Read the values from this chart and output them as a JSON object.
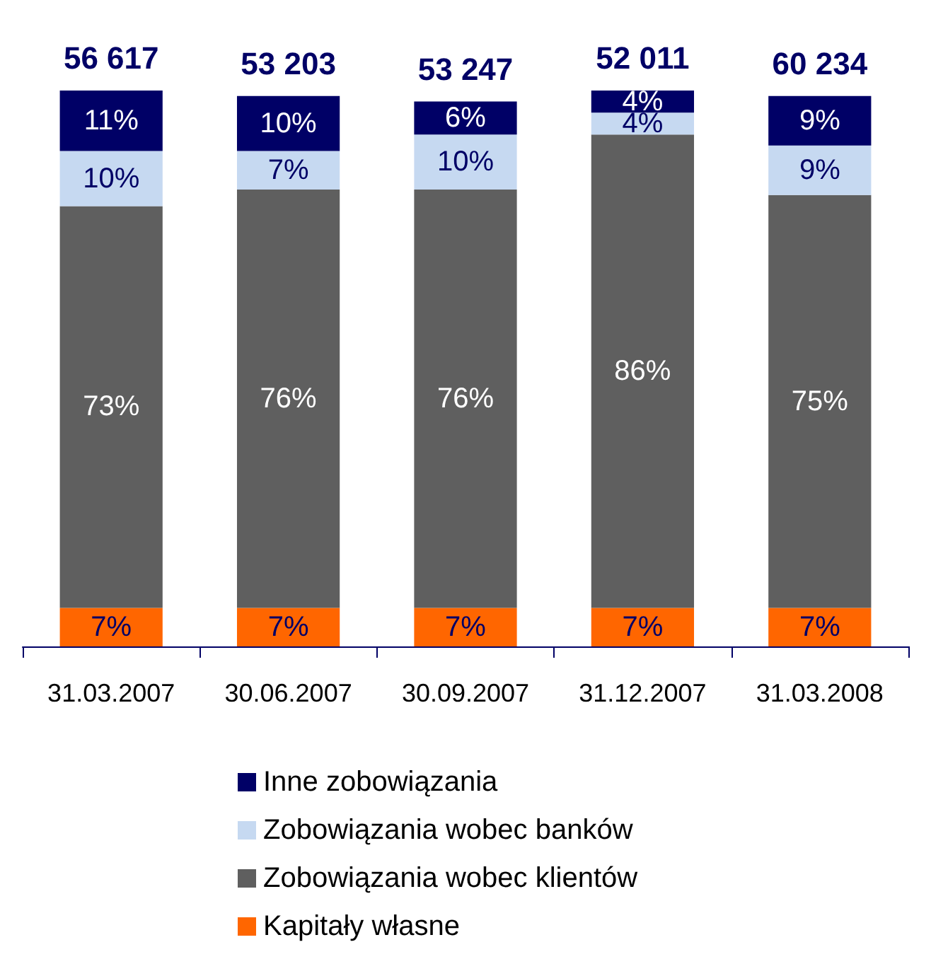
{
  "chart_data": {
    "type": "bar",
    "stacked": true,
    "legend": "bottom",
    "categories": [
      "31.03.2007",
      "30.06.2007",
      "30.09.2007",
      "31.12.2007",
      "31.03.2008"
    ],
    "annotations": [
      "56 617",
      "53 203",
      "53 247",
      "52 011",
      "60 234"
    ],
    "series": [
      {
        "name": "Kapitały własne",
        "color": "#ff6600",
        "values": [
          7,
          7,
          7,
          7,
          7
        ],
        "value_labels": [
          "7%",
          "7%",
          "7%",
          "7%",
          "7%"
        ]
      },
      {
        "name": "Zobowiązania wobec klientów",
        "color": "#5f5f5f",
        "values": [
          73,
          76,
          76,
          86,
          75
        ],
        "value_labels": [
          "73%",
          "76%",
          "76%",
          "86%",
          "75%"
        ]
      },
      {
        "name": "Zobowiązania wobec banków",
        "color": "#c6d9f1",
        "values": [
          10,
          7,
          10,
          4,
          9
        ],
        "value_labels": [
          "10%",
          "7%",
          "10%",
          "4%",
          "9%"
        ]
      },
      {
        "name": "Inne zobowiązania",
        "color": "#000066",
        "values": [
          11,
          10,
          6,
          4,
          9
        ],
        "value_labels": [
          "11%",
          "10%",
          "6%",
          "4%",
          "9%"
        ]
      }
    ]
  }
}
